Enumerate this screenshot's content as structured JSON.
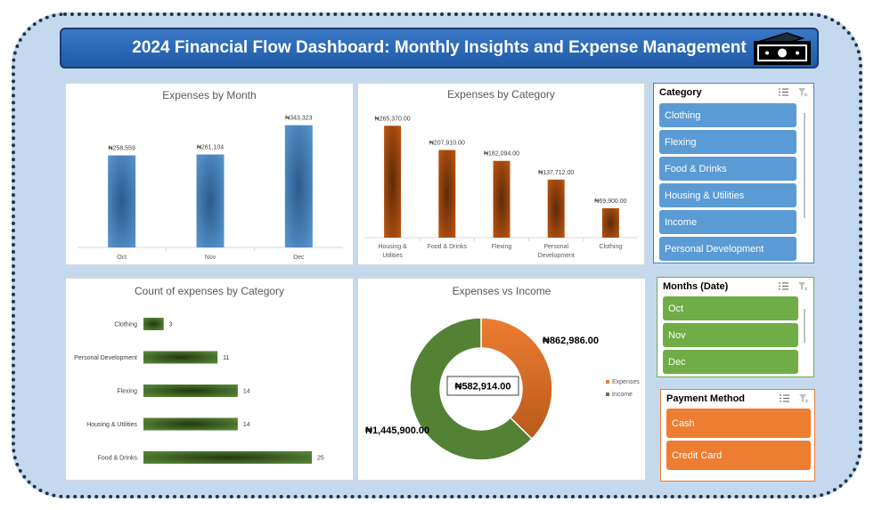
{
  "dashboard_title": "2024 Financial Flow Dashboard: Monthly Insights and Expense Management",
  "icons": {
    "header": "money-bill-icon",
    "multi_select": "multi-select-icon",
    "clear_filter": "clear-filter-icon"
  },
  "colors": {
    "blue": "#5b9bd5",
    "orange": "#c55a11",
    "green": "#548235",
    "slicer_orange": "#ed7d31",
    "slicer_green": "#70ad47"
  },
  "chart_data": [
    {
      "type": "bar",
      "title": "Expenses by Month",
      "categories": [
        "Oct",
        "Nov",
        "Dec"
      ],
      "values": [
        258559,
        261104,
        343323
      ],
      "labels": [
        "₦258,559",
        "₦261,104",
        "₦343,323"
      ],
      "ylim": [
        0,
        360000
      ],
      "grid": false
    },
    {
      "type": "bar",
      "title": "Expenses by Category",
      "categories": [
        [
          "Housing &",
          "Utilities"
        ],
        [
          "Food & Drinks"
        ],
        [
          "Flexing"
        ],
        [
          "Personal",
          "Development"
        ],
        [
          "Clothing"
        ]
      ],
      "values": [
        265370,
        207910,
        182094,
        137712,
        69900
      ],
      "labels": [
        "₦265,370.00",
        "₦207,910.00",
        "₦182,094.00",
        "₦137,712.00",
        "₦69,900.00"
      ],
      "ylim": [
        0,
        285000
      ],
      "grid": false
    },
    {
      "type": "bar",
      "orientation": "horizontal",
      "title": "Count of expenses by Category",
      "categories": [
        "Clothing",
        "Personal Development",
        "Flexing",
        "Housing & Utilities",
        "Food & Drinks"
      ],
      "values": [
        3,
        11,
        14,
        14,
        25
      ],
      "xlim": [
        0,
        25
      ],
      "grid": false
    },
    {
      "type": "pie",
      "donut": true,
      "title": "Expenses vs Income",
      "slices": [
        {
          "name": "Expenses",
          "value": 862986,
          "label": "₦862,986.00",
          "color": "#ed7d31"
        },
        {
          "name": "Income",
          "value": 1445900,
          "label": "₦1,445,900.00",
          "color": "#548235"
        }
      ],
      "center_label": "₦582,914.00",
      "legend": "right"
    }
  ],
  "slicers": {
    "category": {
      "title": "Category",
      "items": [
        "Clothing",
        "Flexing",
        "Food & Drinks",
        "Housing & Utilities",
        "Income",
        "Personal Development"
      ]
    },
    "months": {
      "title": "Months (Date)",
      "items": [
        "Oct",
        "Nov",
        "Dec"
      ]
    },
    "payment": {
      "title": "Payment Method",
      "items": [
        "Cash",
        "Credit Card"
      ]
    }
  }
}
